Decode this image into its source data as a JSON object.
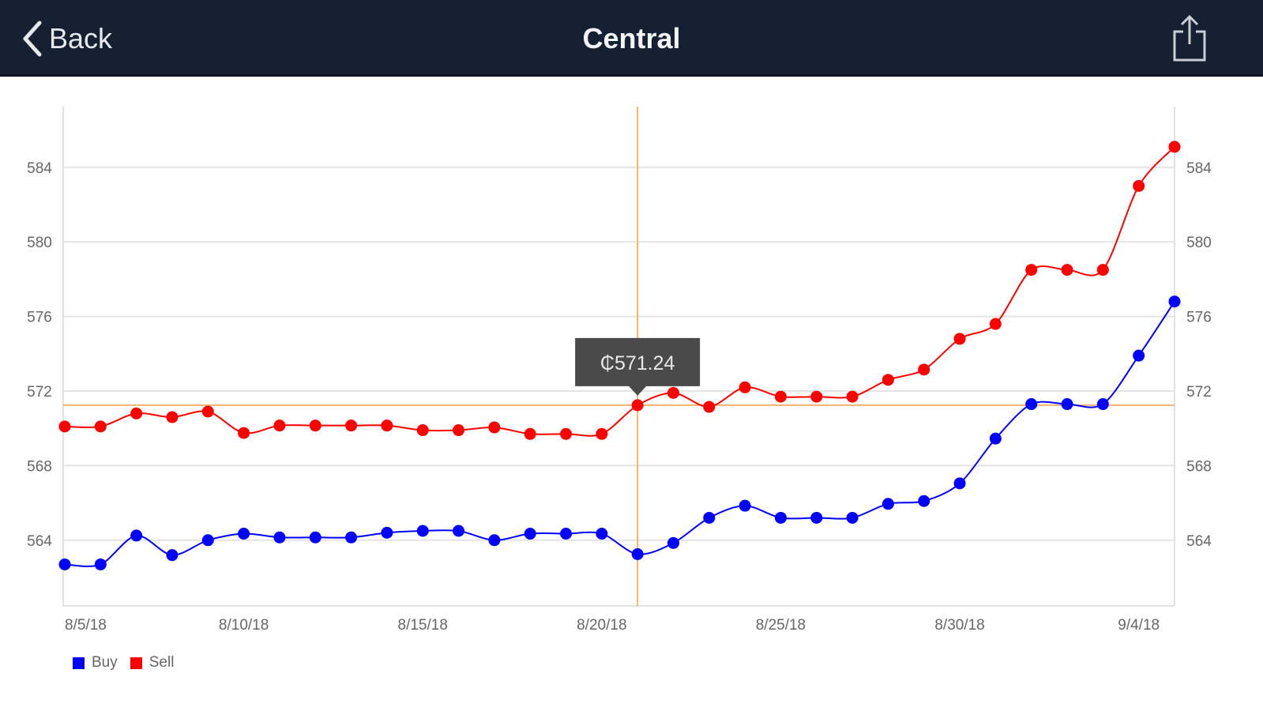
{
  "header": {
    "back_label": "Back",
    "title": "Central",
    "share_icon": "share-icon"
  },
  "tooltip": {
    "text": "₵571.24"
  },
  "chart_data": {
    "type": "line",
    "title": "",
    "xlabel": "",
    "ylabel": "",
    "x": [
      "8/5/18",
      "8/6/18",
      "8/7/18",
      "8/8/18",
      "8/9/18",
      "8/10/18",
      "8/11/18",
      "8/12/18",
      "8/13/18",
      "8/14/18",
      "8/15/18",
      "8/16/18",
      "8/17/18",
      "8/18/18",
      "8/19/18",
      "8/20/18",
      "8/21/18",
      "8/22/18",
      "8/23/18",
      "8/24/18",
      "8/25/18",
      "8/26/18",
      "8/27/18",
      "8/28/18",
      "8/29/18",
      "8/30/18",
      "8/31/18",
      "9/1/18",
      "9/2/18",
      "9/3/18",
      "9/4/18",
      "9/5/18"
    ],
    "x_tick_labels": [
      "8/5/18",
      "8/10/18",
      "8/15/18",
      "8/20/18",
      "8/25/18",
      "8/30/18",
      "9/4/18"
    ],
    "x_tick_indices": [
      0,
      5,
      10,
      15,
      20,
      25,
      30
    ],
    "y_ticks": [
      564,
      568,
      572,
      576,
      580,
      584
    ],
    "ylim": [
      561.5,
      588
    ],
    "grid": true,
    "legend_position": "bottom-left",
    "series": [
      {
        "name": "Buy",
        "color": "#0000ff",
        "values": [
          562.7,
          562.7,
          564.25,
          563.2,
          564.0,
          564.35,
          564.15,
          564.15,
          564.15,
          564.4,
          564.5,
          564.5,
          564.0,
          564.35,
          564.35,
          564.35,
          563.25,
          563.85,
          565.2,
          565.85,
          565.2,
          565.2,
          565.2,
          565.95,
          566.1,
          567.05,
          569.45,
          571.3,
          571.3,
          571.3,
          573.9,
          576.8
        ]
      },
      {
        "name": "Sell",
        "color": "#ff0000",
        "values": [
          570.1,
          570.1,
          570.8,
          570.6,
          570.9,
          569.75,
          570.15,
          570.15,
          570.15,
          570.15,
          569.9,
          569.9,
          570.05,
          569.7,
          569.7,
          569.7,
          571.24,
          571.9,
          571.15,
          572.2,
          571.7,
          571.7,
          571.7,
          572.6,
          573.15,
          574.8,
          575.6,
          578.5,
          578.5,
          578.5,
          583.0,
          585.1
        ]
      }
    ],
    "crosshair": {
      "index": 16,
      "value": 571.24,
      "color": "#f5b26b"
    }
  }
}
